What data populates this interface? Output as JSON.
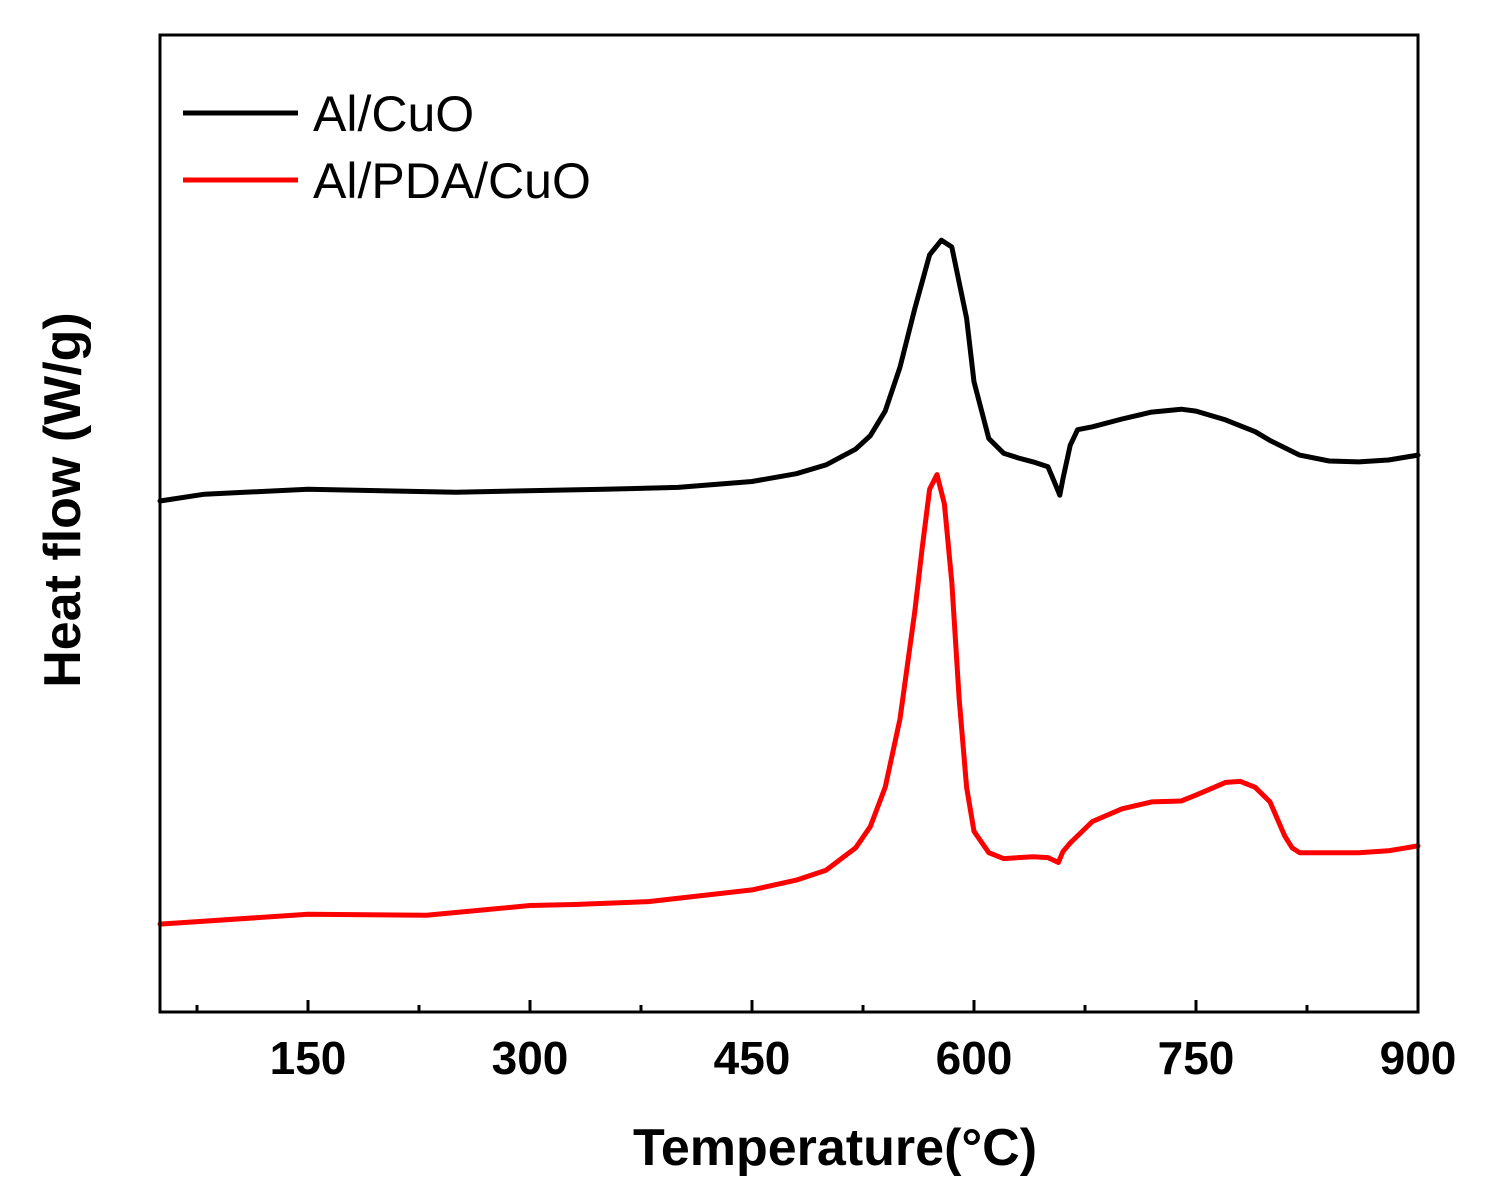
{
  "chart_data": {
    "type": "line",
    "xlabel": "Temperature(°C)",
    "ylabel": "Heat flow (W/g)",
    "xlim": [
      50,
      900
    ],
    "ylim": [
      0,
      100
    ],
    "x_ticks": [
      150,
      300,
      450,
      600,
      750,
      900
    ],
    "x_minor_ticks": [
      75,
      225,
      375,
      525,
      675,
      825
    ],
    "y_ticks_visible": false,
    "grid": false,
    "legend_position": "top-left",
    "series": [
      {
        "name": "Al/CuO",
        "color": "#000000",
        "x": [
          50,
          80,
          150,
          250,
          350,
          400,
          450,
          480,
          500,
          520,
          530,
          540,
          550,
          560,
          570,
          578,
          585,
          595,
          600,
          610,
          620,
          630,
          640,
          650,
          655,
          658,
          660,
          665,
          670,
          680,
          700,
          720,
          740,
          750,
          770,
          790,
          800,
          820,
          840,
          860,
          880,
          900
        ],
        "y": [
          52.3,
          53.0,
          53.5,
          53.2,
          53.5,
          53.7,
          54.3,
          55.1,
          56.0,
          57.6,
          59.0,
          61.5,
          66.0,
          72.0,
          77.5,
          79.0,
          78.3,
          71.0,
          64.5,
          58.7,
          57.2,
          56.7,
          56.3,
          55.8,
          54.0,
          52.9,
          54.5,
          58.0,
          59.6,
          59.9,
          60.7,
          61.4,
          61.7,
          61.5,
          60.6,
          59.4,
          58.5,
          57.0,
          56.4,
          56.3,
          56.5,
          57.0
        ]
      },
      {
        "name": "Al/PDA/CuO",
        "color": "#ff0000",
        "x": [
          50,
          150,
          230,
          300,
          330,
          380,
          450,
          480,
          500,
          520,
          530,
          540,
          550,
          560,
          565,
          570,
          575,
          580,
          585,
          590,
          595,
          600,
          610,
          620,
          640,
          650,
          657,
          660,
          665,
          680,
          700,
          720,
          740,
          750,
          770,
          780,
          790,
          800,
          810,
          815,
          820,
          840,
          860,
          880,
          900
        ],
        "y": [
          9.0,
          10.0,
          9.9,
          10.9,
          11.0,
          11.3,
          12.5,
          13.5,
          14.5,
          16.8,
          19.0,
          23.0,
          30.0,
          41.0,
          47.5,
          53.5,
          55.0,
          52.0,
          44.0,
          32.0,
          23.0,
          18.5,
          16.3,
          15.7,
          15.9,
          15.8,
          15.3,
          16.4,
          17.3,
          19.5,
          20.8,
          21.5,
          21.6,
          22.2,
          23.5,
          23.6,
          23.0,
          21.5,
          18.0,
          16.8,
          16.3,
          16.3,
          16.3,
          16.5,
          17.0
        ]
      }
    ]
  }
}
